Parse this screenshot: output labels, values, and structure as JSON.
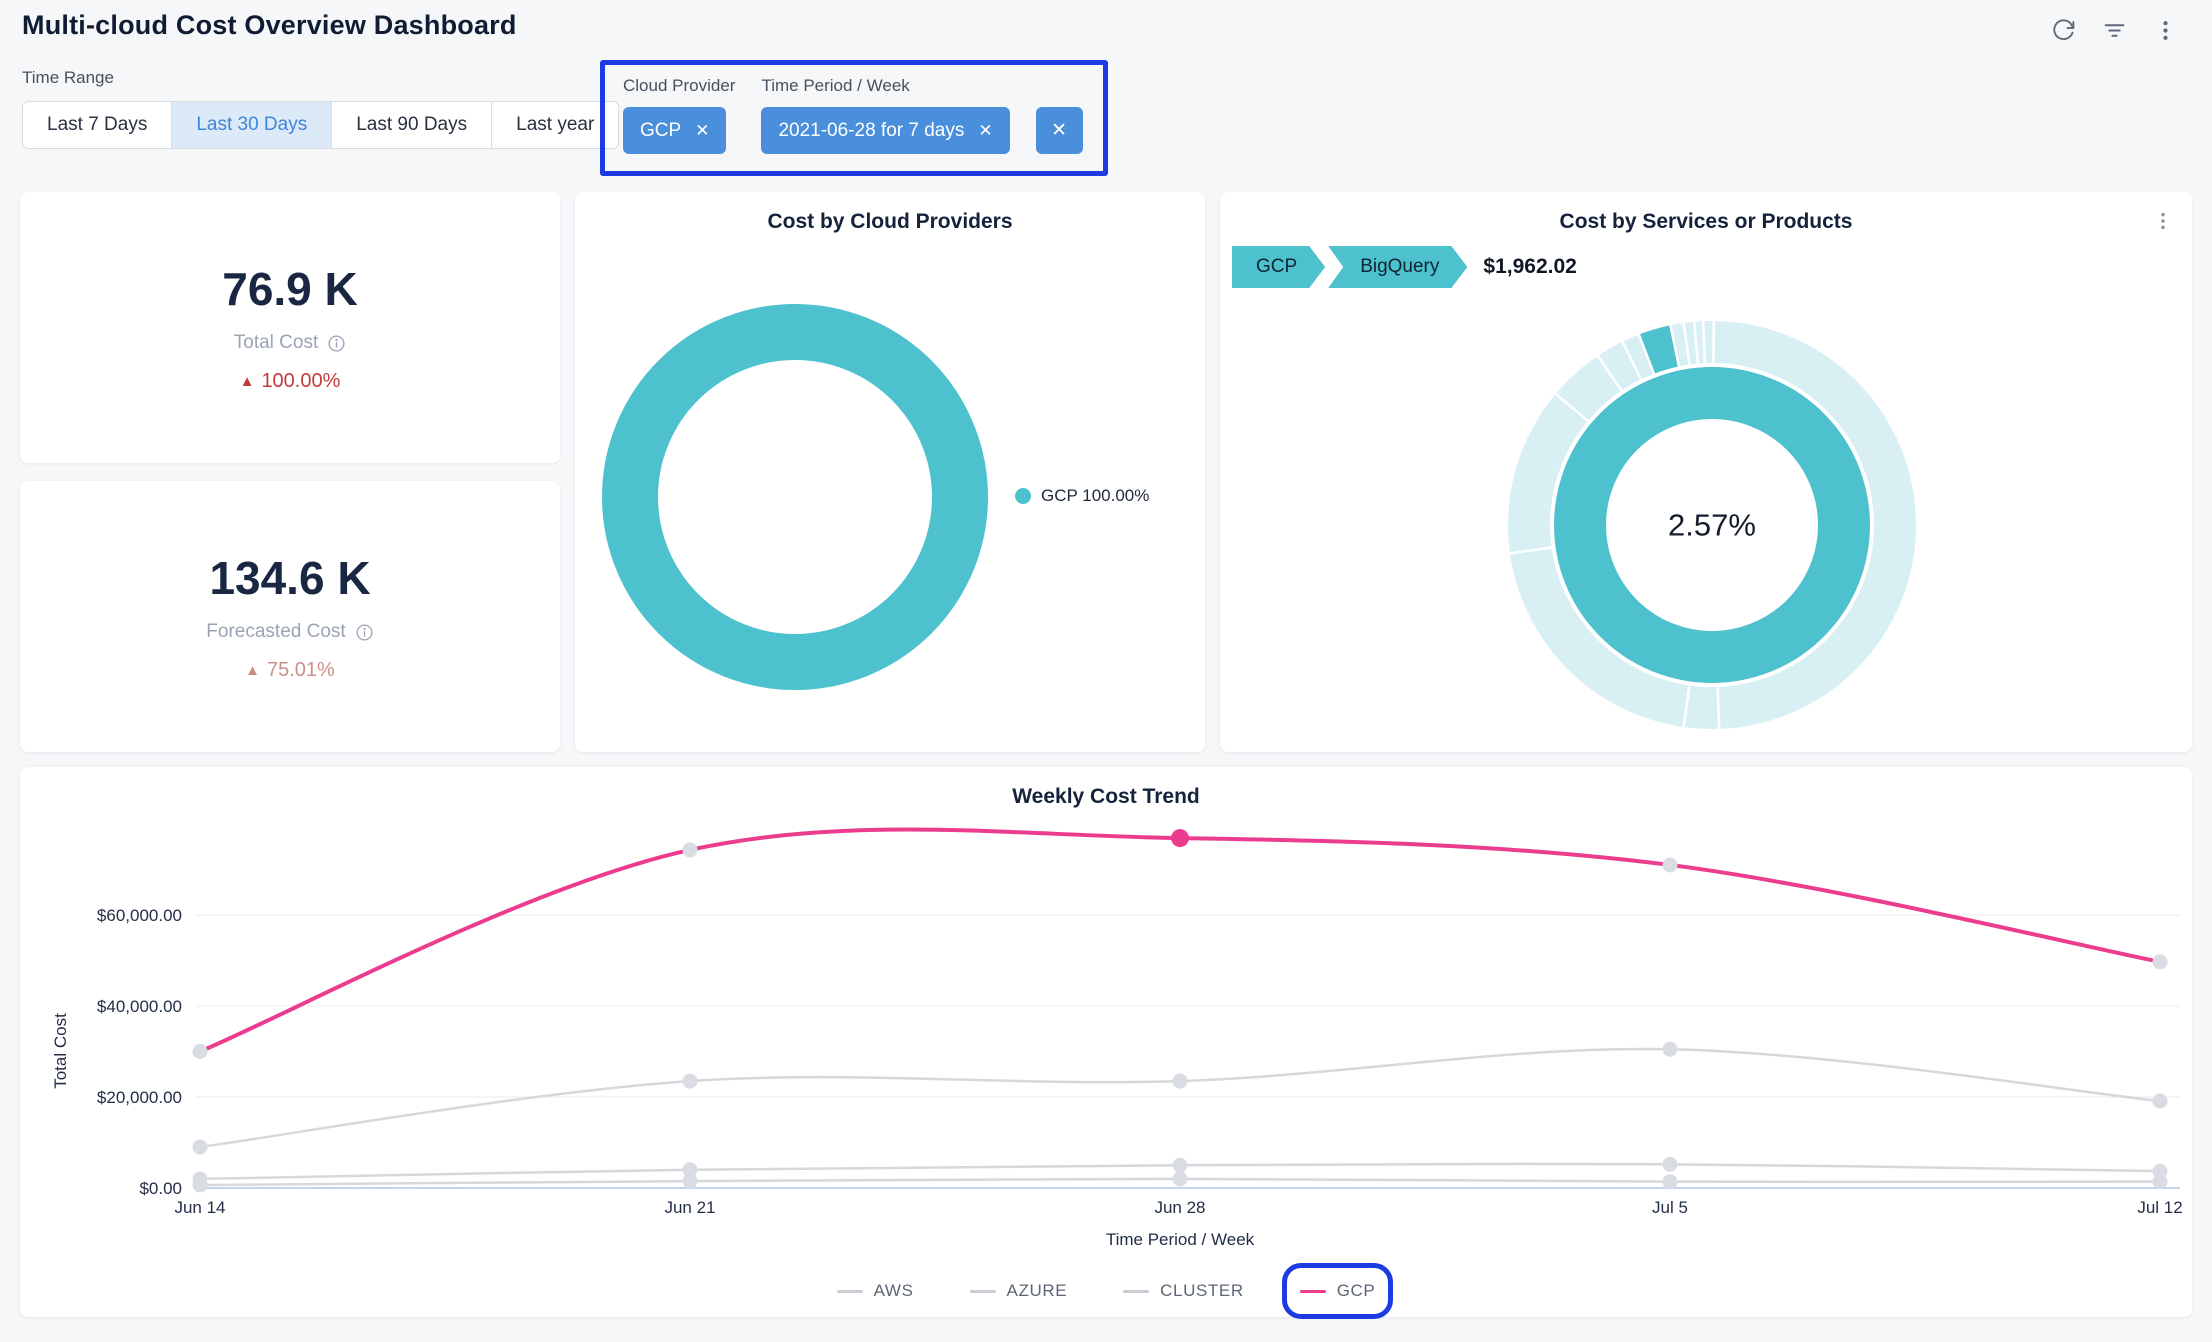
{
  "header": {
    "title": "Multi-cloud Cost Overview Dashboard",
    "icons": {
      "refresh": "refresh-circular-arrow",
      "filter": "filter-lines",
      "more": "vertical-kebab-menu"
    }
  },
  "icons": {
    "close": "✕",
    "info": "info-circle",
    "up_triangle": "▲"
  },
  "time_range": {
    "label": "Time Range",
    "options": [
      "Last 7 Days",
      "Last 30 Days",
      "Last 90 Days",
      "Last year"
    ],
    "selected": "Last 30 Days"
  },
  "applied_filters": {
    "cloud_provider": {
      "label": "Cloud Provider",
      "value": "GCP"
    },
    "time_period": {
      "label": "Time Period / Week",
      "value": "2021-06-28 for 7 days"
    }
  },
  "kpis": [
    {
      "value": "76.9 K",
      "label": "Total Cost",
      "delta": "100.00%",
      "trend": "up",
      "delta_color": "#c23b3b"
    },
    {
      "value": "134.6 K",
      "label": "Forecasted Cost",
      "delta": "75.01%",
      "trend": "up",
      "delta_color": "#c9908b"
    }
  ],
  "colors": {
    "teal": "#4ec1ce",
    "pale_teal": "#d8f0f4",
    "pink": "#ec3c8e",
    "chip_blue": "#4a8fdb",
    "annotation_blue": "#1c3be3",
    "gray_line": "#d6d8dd",
    "gray_dot": "#d9dce2",
    "legend_gray_dash": "#c9ccd3"
  },
  "chart_data": [
    {
      "type": "pie",
      "title": "Cost by Cloud Providers",
      "labels": [
        "GCP"
      ],
      "values": [
        100.0
      ],
      "legend": [
        {
          "label": "GCP 100.00%",
          "color": "#4ec1ce"
        }
      ],
      "donut": true,
      "legend_position": "right"
    },
    {
      "type": "pie",
      "title": "Cost by Services or Products",
      "breadcrumb": [
        {
          "label": "GCP"
        },
        {
          "label": "BigQuery"
        }
      ],
      "selected_amount": "$1,962.02",
      "center_label": "2.57%",
      "inner_ring": {
        "label": "GCP",
        "value_pct": 100.0
      },
      "outer_ring": {
        "highlight_label": "BigQuery",
        "highlight_value_pct": 2.57,
        "highlight_start_deg": 339,
        "divider_angles_deg": [
          178,
          188,
          262,
          310,
          326,
          334,
          352,
          355,
          357.5,
          0.5
        ]
      },
      "donut": true
    },
    {
      "type": "line",
      "title": "Weekly Cost Trend",
      "x": [
        "Jun 14",
        "Jun 21",
        "Jun 28",
        "Jul 5",
        "Jul 12"
      ],
      "series": [
        {
          "name": "AWS",
          "color": "#d6d8dd",
          "values": [
            2000,
            4000,
            5000,
            5200,
            3700
          ]
        },
        {
          "name": "AZURE",
          "color": "#d6d8dd",
          "values": [
            650,
            1500,
            2000,
            1400,
            1400
          ]
        },
        {
          "name": "CLUSTER",
          "color": "#d6d8dd",
          "values": [
            9000,
            23500,
            23500,
            30500,
            19100
          ]
        },
        {
          "name": "GCP",
          "color": "#ec3c8e",
          "values": [
            30000,
            74300,
            76900,
            71000,
            49700
          ]
        }
      ],
      "xlabel": "Time Period / Week",
      "ylabel": "Total Cost",
      "yticks": [
        {
          "v": 0,
          "label": "$0.00"
        },
        {
          "v": 20000,
          "label": "$20,000.00"
        },
        {
          "v": 40000,
          "label": "$40,000.00"
        },
        {
          "v": 60000,
          "label": "$60,000.00"
        }
      ],
      "ylim": [
        0,
        82000
      ],
      "grid": true,
      "legend_position": "bottom",
      "highlight_point": {
        "series": "GCP",
        "x_index": 2
      }
    }
  ]
}
